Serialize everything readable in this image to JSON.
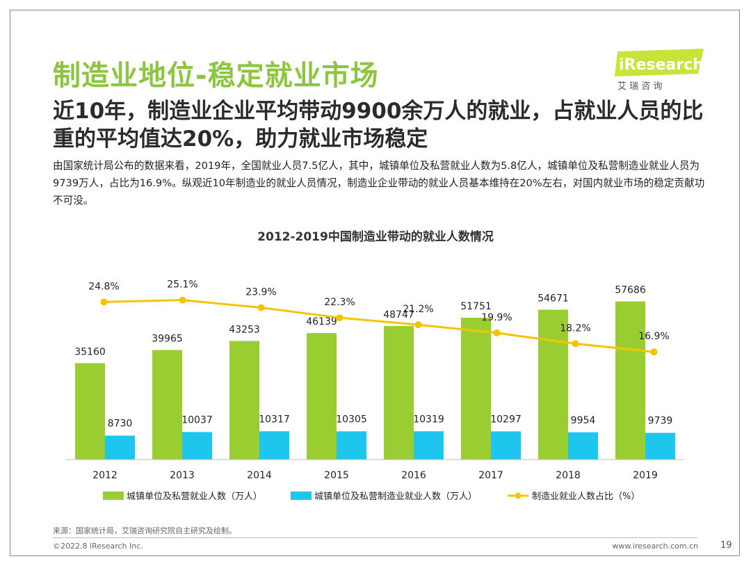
{
  "title": "制造业地位-稳定就业市场",
  "subtitle": "近10年，制造业企业平均带动9900余万人的就业，占就业人员的比重的平均值达20%，助力就业市场稳定",
  "paragraph": "由国家统计局公布的数据来看，2019年，全国就业人员7.5亿人，其中，城镇单位及私营就业人数为5.8亿人，城镇单位及私营制造业就业人员为9739万人，占比为16.9%。纵观近10年制造业的就业人员情况，制造业企业带动的就业人员基本维持在20%左右，对国内就业市场的稳定贡献功不可没。",
  "logo": {
    "brand": "iResearch",
    "cn": "艾 瑞 咨 询"
  },
  "colors": {
    "green": "#9acd32",
    "blue": "#1ec6ee",
    "yellow": "#f5c400",
    "title_green": "#8cc63f"
  },
  "chart_data": {
    "type": "bar",
    "title": "2012-2019中国制造业带动的就业人数情况",
    "categories": [
      "2012",
      "2013",
      "2014",
      "2015",
      "2016",
      "2017",
      "2018",
      "2019"
    ],
    "series": [
      {
        "name": "城镇单位及私营就业人数（万人）",
        "kind": "bar",
        "values": [
          35160,
          39965,
          43253,
          46139,
          48747,
          51751,
          54671,
          57686
        ]
      },
      {
        "name": "城镇单位及私营制造业就业人数（万人）",
        "kind": "bar",
        "values": [
          8730,
          10037,
          10317,
          10305,
          10319,
          10297,
          9954,
          9739
        ]
      },
      {
        "name": "制造业就业人数占比（%）",
        "kind": "line",
        "values": [
          24.8,
          25.1,
          23.9,
          22.3,
          21.2,
          19.9,
          18.2,
          16.9
        ],
        "labels": [
          "24.8%",
          "25.1%",
          "23.9%",
          "22.3%",
          "21.2%",
          "19.9%",
          "18.2%",
          "16.9%"
        ]
      }
    ],
    "ylim": [
      0,
      70000
    ],
    "y2lim": [
      0,
      40
    ],
    "xlabel": "",
    "ylabel": "",
    "legend": "bottom"
  },
  "footer": {
    "source": "来源：国家统计局，艾瑞咨询研究院自主研究及绘制。",
    "copyright": "©2022.8 iResearch Inc.",
    "site": "www.iresearch.com.cn",
    "page": "19"
  }
}
